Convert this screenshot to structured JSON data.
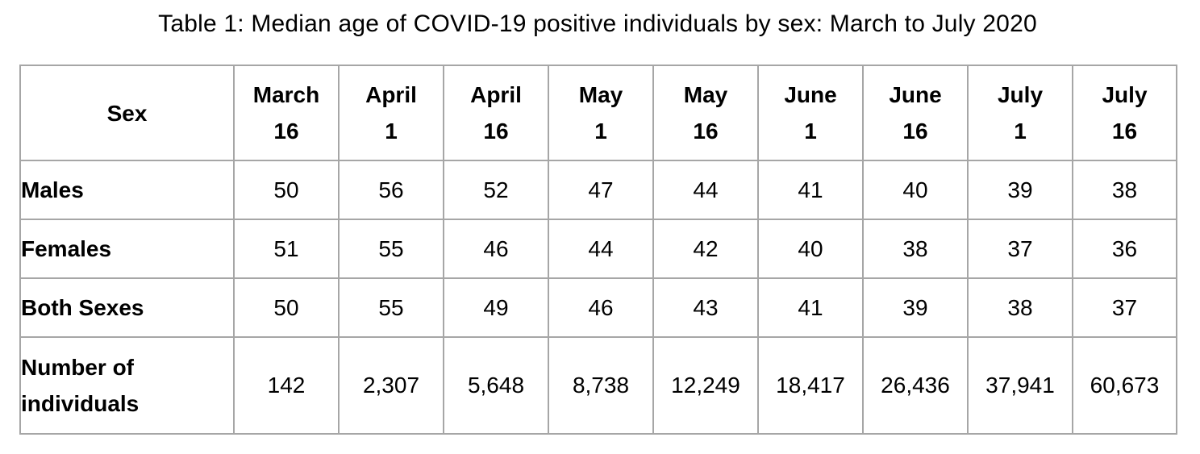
{
  "caption": "Table 1: Median age of COVID-19 positive individuals by sex: March to July 2020",
  "table": {
    "corner_header": "Sex",
    "columns": [
      {
        "line1": "March",
        "line2": "16"
      },
      {
        "line1": "April",
        "line2": "1"
      },
      {
        "line1": "April",
        "line2": "16"
      },
      {
        "line1": "May",
        "line2": "1"
      },
      {
        "line1": "May",
        "line2": "16"
      },
      {
        "line1": "June",
        "line2": "1"
      },
      {
        "line1": "June",
        "line2": "16"
      },
      {
        "line1": "July",
        "line2": "1"
      },
      {
        "line1": "July",
        "line2": "16"
      }
    ],
    "rows": [
      {
        "label": "Males",
        "values": [
          "50",
          "56",
          "52",
          "47",
          "44",
          "41",
          "40",
          "39",
          "38"
        ]
      },
      {
        "label": "Females",
        "values": [
          "51",
          "55",
          "46",
          "44",
          "42",
          "40",
          "38",
          "37",
          "36"
        ]
      },
      {
        "label": "Both Sexes",
        "values": [
          "50",
          "55",
          "49",
          "46",
          "43",
          "41",
          "39",
          "38",
          "37"
        ]
      },
      {
        "label_line1": "Number of",
        "label_line2": "individuals",
        "values": [
          "142",
          "2,307",
          "5,648",
          "8,738",
          "12,249",
          "18,417",
          "26,436",
          "37,941",
          "60,673"
        ]
      }
    ]
  }
}
